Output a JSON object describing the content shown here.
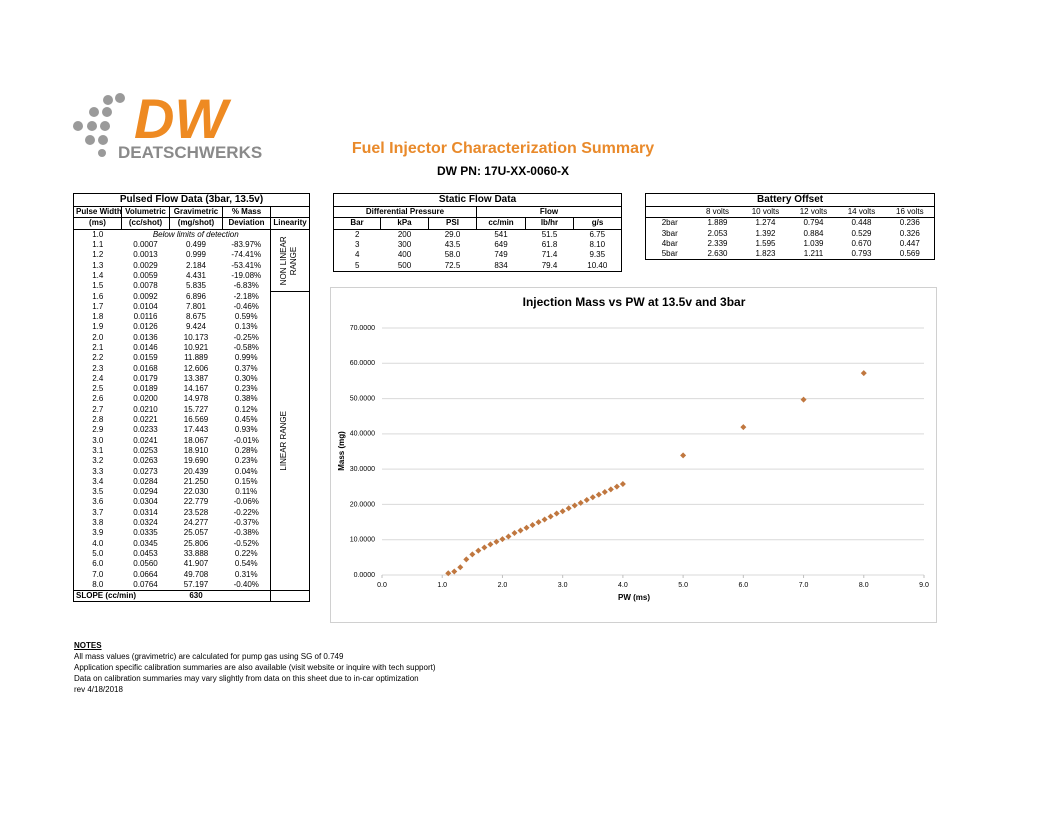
{
  "header": {
    "logo_mark": "DW",
    "logo_text": "DEATSCHWERKS",
    "title": "Fuel Injector Characterization Summary",
    "subtitle": "DW PN: 17U-XX-0060-X"
  },
  "pulsed_table": {
    "title": "Pulsed Flow Data (3bar, 13.5v)",
    "columns_top": [
      "Pulse Width",
      "Volumetric",
      "Gravimetric",
      "% Mass"
    ],
    "columns_bottom": [
      "(ms)",
      "(cc/shot)",
      "(mg/shot)",
      "Deviation",
      "Linearity"
    ],
    "row_groups": [
      {
        "linearity": "NON LINEAR RANGE",
        "rows": [
          [
            "1.0",
            "Below limits of detection"
          ],
          [
            "1.1",
            "0.0007",
            "0.499",
            "-83.97%"
          ],
          [
            "1.2",
            "0.0013",
            "0.999",
            "-74.41%"
          ],
          [
            "1.3",
            "0.0029",
            "2.184",
            "-53.41%"
          ],
          [
            "1.4",
            "0.0059",
            "4.431",
            "-19.08%"
          ],
          [
            "1.5",
            "0.0078",
            "5.835",
            "-6.83%"
          ]
        ]
      },
      {
        "linearity": "LINEAR RANGE",
        "rows": [
          [
            "1.6",
            "0.0092",
            "6.896",
            "-2.18%"
          ],
          [
            "1.7",
            "0.0104",
            "7.801",
            "-0.46%"
          ],
          [
            "1.8",
            "0.0116",
            "8.675",
            "0.59%"
          ],
          [
            "1.9",
            "0.0126",
            "9.424",
            "0.13%"
          ],
          [
            "2.0",
            "0.0136",
            "10.173",
            "-0.25%"
          ],
          [
            "2.1",
            "0.0146",
            "10.921",
            "-0.58%"
          ],
          [
            "2.2",
            "0.0159",
            "11.889",
            "0.99%"
          ],
          [
            "2.3",
            "0.0168",
            "12.606",
            "0.37%"
          ],
          [
            "2.4",
            "0.0179",
            "13.387",
            "0.30%"
          ],
          [
            "2.5",
            "0.0189",
            "14.167",
            "0.23%"
          ],
          [
            "2.6",
            "0.0200",
            "14.978",
            "0.38%"
          ],
          [
            "2.7",
            "0.0210",
            "15.727",
            "0.12%"
          ],
          [
            "2.8",
            "0.0221",
            "16.569",
            "0.45%"
          ],
          [
            "2.9",
            "0.0233",
            "17.443",
            "0.93%"
          ],
          [
            "3.0",
            "0.0241",
            "18.067",
            "-0.01%"
          ],
          [
            "3.1",
            "0.0253",
            "18.910",
            "0.28%"
          ],
          [
            "3.2",
            "0.0263",
            "19.690",
            "0.23%"
          ],
          [
            "3.3",
            "0.0273",
            "20.439",
            "0.04%"
          ],
          [
            "3.4",
            "0.0284",
            "21.250",
            "0.15%"
          ],
          [
            "3.5",
            "0.0294",
            "22.030",
            "0.11%"
          ],
          [
            "3.6",
            "0.0304",
            "22.779",
            "-0.06%"
          ],
          [
            "3.7",
            "0.0314",
            "23.528",
            "-0.22%"
          ],
          [
            "3.8",
            "0.0324",
            "24.277",
            "-0.37%"
          ],
          [
            "3.9",
            "0.0335",
            "25.057",
            "-0.38%"
          ],
          [
            "4.0",
            "0.0345",
            "25.806",
            "-0.52%"
          ],
          [
            "5.0",
            "0.0453",
            "33.888",
            "0.22%"
          ],
          [
            "6.0",
            "0.0560",
            "41.907",
            "0.54%"
          ],
          [
            "7.0",
            "0.0664",
            "49.708",
            "0.31%"
          ],
          [
            "8.0",
            "0.0764",
            "57.197",
            "-0.40%"
          ]
        ]
      }
    ],
    "slope": {
      "label": "SLOPE (cc/min)",
      "value": "630"
    }
  },
  "static_table": {
    "title": "Static Flow Data",
    "groups": [
      "Differential Pressure",
      "Flow"
    ],
    "columns": [
      "Bar",
      "kPa",
      "PSI",
      "cc/min",
      "lb/hr",
      "g/s"
    ],
    "rows": [
      [
        "2",
        "200",
        "29.0",
        "541",
        "51.5",
        "6.75"
      ],
      [
        "3",
        "300",
        "43.5",
        "649",
        "61.8",
        "8.10"
      ],
      [
        "4",
        "400",
        "58.0",
        "749",
        "71.4",
        "9.35"
      ],
      [
        "5",
        "500",
        "72.5",
        "834",
        "79.4",
        "10.40"
      ]
    ]
  },
  "battery_table": {
    "title": "Battery Offset",
    "columns": [
      "8 volts",
      "10 volts",
      "12 volts",
      "14 volts",
      "16 volts"
    ],
    "rows": [
      [
        "2bar",
        "1.889",
        "1.274",
        "0.794",
        "0.448",
        "0.236"
      ],
      [
        "3bar",
        "2.053",
        "1.392",
        "0.884",
        "0.529",
        "0.326"
      ],
      [
        "4bar",
        "2.339",
        "1.595",
        "1.039",
        "0.670",
        "0.447"
      ],
      [
        "5bar",
        "2.630",
        "1.823",
        "1.211",
        "0.793",
        "0.569"
      ]
    ]
  },
  "chart_data": {
    "type": "scatter",
    "title": "Injection Mass vs PW at 13.5v and 3bar",
    "x_label": "PW (ms)",
    "y_label": "Mass (mg)",
    "color": "#c0773f",
    "grid": true,
    "x": [
      1.1,
      1.2,
      1.3,
      1.4,
      1.5,
      1.6,
      1.7,
      1.8,
      1.9,
      2.0,
      2.1,
      2.2,
      2.3,
      2.4,
      2.5,
      2.6,
      2.7,
      2.8,
      2.9,
      3.0,
      3.1,
      3.2,
      3.3,
      3.4,
      3.5,
      3.6,
      3.7,
      3.8,
      3.9,
      4.0,
      5.0,
      6.0,
      7.0,
      8.0
    ],
    "values": [
      0.499,
      0.999,
      2.184,
      4.431,
      5.835,
      6.896,
      7.801,
      8.675,
      9.424,
      10.173,
      10.921,
      11.889,
      12.606,
      13.387,
      14.167,
      14.978,
      15.727,
      16.569,
      17.443,
      18.067,
      18.91,
      19.69,
      20.439,
      21.25,
      22.03,
      22.779,
      23.528,
      24.277,
      25.057,
      25.806,
      33.888,
      41.907,
      49.708,
      57.197
    ],
    "xlim": [
      0,
      9
    ],
    "ylim": [
      0,
      70
    ],
    "xticks": [
      {
        "value": 0,
        "label": "0.0"
      },
      {
        "value": 1,
        "label": "1.0"
      },
      {
        "value": 2,
        "label": "2.0"
      },
      {
        "value": 3,
        "label": "3.0"
      },
      {
        "value": 4,
        "label": "4.0"
      },
      {
        "value": 5,
        "label": "5.0"
      },
      {
        "value": 6,
        "label": "6.0"
      },
      {
        "value": 7,
        "label": "7.0"
      },
      {
        "value": 8,
        "label": "8.0"
      },
      {
        "value": 9,
        "label": "9.0"
      }
    ],
    "yticks": [
      {
        "value": 0,
        "label": "0.0000"
      },
      {
        "value": 10,
        "label": "10.0000"
      },
      {
        "value": 20,
        "label": "20.0000"
      },
      {
        "value": 30,
        "label": "30.0000"
      },
      {
        "value": 40,
        "label": "40.0000"
      },
      {
        "value": 50,
        "label": "50.0000"
      },
      {
        "value": 60,
        "label": "60.0000"
      },
      {
        "value": 70,
        "label": "70.0000"
      }
    ]
  },
  "notes": {
    "heading": "NOTES",
    "lines": [
      "All mass values (gravimetric) are calculated for pump gas using SG of 0.749",
      "Application specific calibration summaries are also available (visit website or inquire with tech support)",
      "Data on calibration summaries may vary slightly from data on this sheet due to in-car optimization",
      "rev 4/18/2018"
    ]
  }
}
